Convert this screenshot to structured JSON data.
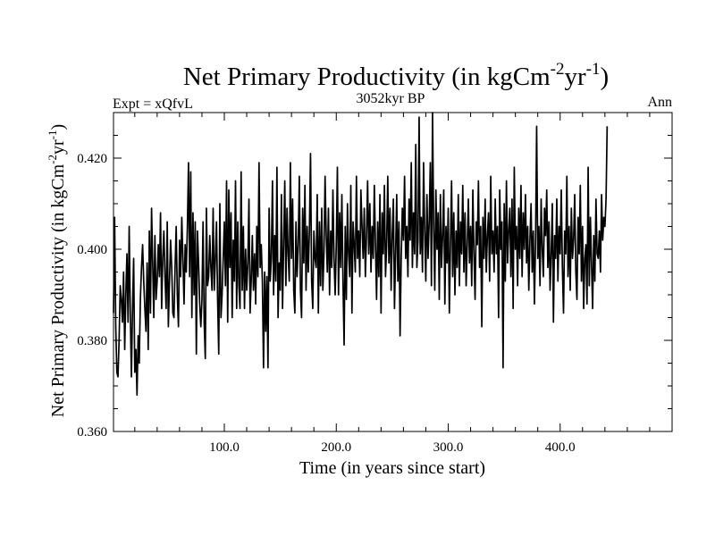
{
  "chart_data": {
    "type": "line",
    "title": "Net Primary Productivity (in kgCm",
    "title_sup1": "-2",
    "title_mid": "yr",
    "title_sup2": "-1",
    "title_end": ")",
    "subtitle_left": "Expt = xQfvL",
    "subtitle_center": "3052kyr BP",
    "subtitle_right": "Ann",
    "xlabel": "Time (in years since start)",
    "ylabel": "Net Primary Productivity (in kgCm",
    "ylabel_sup1": "-2",
    "ylabel_mid": "yr",
    "ylabel_sup2": "-1",
    "ylabel_end": ")",
    "xlim": [
      1,
      500
    ],
    "ylim": [
      0.36,
      0.43
    ],
    "x_ticks": [
      100,
      200,
      300,
      400
    ],
    "x_tick_labels": [
      "100.0",
      "200.0",
      "300.0",
      "400.0"
    ],
    "y_ticks": [
      0.36,
      0.38,
      0.4,
      0.42
    ],
    "y_tick_labels": [
      "0.360",
      "0.380",
      "0.400",
      "0.420"
    ],
    "grid": false,
    "series": [
      {
        "name": "Net Primary Productivity",
        "x_start": 1,
        "x_step": 1,
        "values": [
          0.386,
          0.407,
          0.383,
          0.373,
          0.372,
          0.38,
          0.392,
          0.389,
          0.384,
          0.395,
          0.378,
          0.39,
          0.399,
          0.384,
          0.405,
          0.386,
          0.372,
          0.387,
          0.398,
          0.373,
          0.378,
          0.368,
          0.381,
          0.375,
          0.389,
          0.396,
          0.401,
          0.393,
          0.387,
          0.382,
          0.397,
          0.378,
          0.404,
          0.386,
          0.409,
          0.397,
          0.385,
          0.403,
          0.389,
          0.393,
          0.401,
          0.394,
          0.408,
          0.387,
          0.398,
          0.404,
          0.394,
          0.387,
          0.406,
          0.383,
          0.393,
          0.402,
          0.396,
          0.386,
          0.385,
          0.396,
          0.405,
          0.39,
          0.383,
          0.402,
          0.394,
          0.407,
          0.398,
          0.388,
          0.401,
          0.395,
          0.405,
          0.419,
          0.394,
          0.417,
          0.385,
          0.408,
          0.39,
          0.406,
          0.377,
          0.404,
          0.397,
          0.388,
          0.383,
          0.389,
          0.406,
          0.384,
          0.376,
          0.409,
          0.392,
          0.394,
          0.403,
          0.396,
          0.391,
          0.409,
          0.391,
          0.398,
          0.406,
          0.389,
          0.377,
          0.41,
          0.385,
          0.39,
          0.398,
          0.406,
          0.392,
          0.415,
          0.384,
          0.413,
          0.396,
          0.408,
          0.385,
          0.402,
          0.393,
          0.415,
          0.387,
          0.406,
          0.392,
          0.387,
          0.417,
          0.391,
          0.405,
          0.387,
          0.4,
          0.391,
          0.397,
          0.411,
          0.386,
          0.393,
          0.403,
          0.391,
          0.399,
          0.388,
          0.405,
          0.394,
          0.419,
          0.396,
          0.401,
          0.393,
          0.374,
          0.395,
          0.382,
          0.394,
          0.374,
          0.409,
          0.393,
          0.398,
          0.415,
          0.39,
          0.403,
          0.393,
          0.418,
          0.385,
          0.397,
          0.391,
          0.412,
          0.387,
          0.401,
          0.415,
          0.392,
          0.409,
          0.399,
          0.393,
          0.419,
          0.398,
          0.411,
          0.391,
          0.386,
          0.406,
          0.394,
          0.401,
          0.416,
          0.391,
          0.385,
          0.409,
          0.397,
          0.414,
          0.391,
          0.405,
          0.395,
          0.404,
          0.421,
          0.393,
          0.387,
          0.404,
          0.398,
          0.396,
          0.412,
          0.386,
          0.406,
          0.392,
          0.409,
          0.391,
          0.399,
          0.416,
          0.403,
          0.395,
          0.409,
          0.39,
          0.404,
          0.396,
          0.413,
          0.398,
          0.39,
          0.401,
          0.418,
          0.39,
          0.408,
          0.396,
          0.412,
          0.393,
          0.379,
          0.405,
          0.389,
          0.41,
          0.399,
          0.394,
          0.414,
          0.386,
          0.406,
          0.401,
          0.395,
          0.416,
          0.398,
          0.404,
          0.394,
          0.413,
          0.405,
          0.398,
          0.409,
          0.394,
          0.403,
          0.415,
          0.399,
          0.41,
          0.395,
          0.405,
          0.398,
          0.414,
          0.401,
          0.389,
          0.406,
          0.394,
          0.412,
          0.386,
          0.408,
          0.399,
          0.414,
          0.394,
          0.401,
          0.416,
          0.397,
          0.409,
          0.391,
          0.403,
          0.411,
          0.387,
          0.399,
          0.412,
          0.393,
          0.406,
          0.381,
          0.398,
          0.409,
          0.402,
          0.416,
          0.398,
          0.405,
          0.394,
          0.411,
          0.402,
          0.419,
          0.396,
          0.408,
          0.399,
          0.423,
          0.396,
          0.402,
          0.429,
          0.399,
          0.407,
          0.395,
          0.419,
          0.404,
          0.393,
          0.412,
          0.398,
          0.406,
          0.419,
          0.392,
          0.43,
          0.405,
          0.391,
          0.413,
          0.4,
          0.408,
          0.389,
          0.412,
          0.396,
          0.403,
          0.413,
          0.388,
          0.405,
          0.397,
          0.409,
          0.386,
          0.401,
          0.415,
          0.394,
          0.408,
          0.39,
          0.404,
          0.396,
          0.412,
          0.392,
          0.406,
          0.399,
          0.414,
          0.395,
          0.408,
          0.392,
          0.401,
          0.411,
          0.397,
          0.405,
          0.392,
          0.413,
          0.399,
          0.389,
          0.406,
          0.401,
          0.415,
          0.396,
          0.405,
          0.383,
          0.407,
          0.398,
          0.411,
          0.395,
          0.403,
          0.408,
          0.393,
          0.416,
          0.399,
          0.404,
          0.395,
          0.411,
          0.399,
          0.405,
          0.385,
          0.413,
          0.4,
          0.406,
          0.374,
          0.41,
          0.393,
          0.415,
          0.397,
          0.404,
          0.409,
          0.394,
          0.411,
          0.387,
          0.418,
          0.4,
          0.405,
          0.392,
          0.409,
          0.398,
          0.414,
          0.394,
          0.408,
          0.4,
          0.412,
          0.397,
          0.405,
          0.391,
          0.402,
          0.41,
          0.395,
          0.404,
          0.388,
          0.401,
          0.427,
          0.398,
          0.405,
          0.392,
          0.411,
          0.4,
          0.394,
          0.409,
          0.403,
          0.413,
          0.396,
          0.406,
          0.391,
          0.399,
          0.41,
          0.384,
          0.403,
          0.398,
          0.411,
          0.393,
          0.405,
          0.399,
          0.413,
          0.396,
          0.386,
          0.404,
          0.399,
          0.416,
          0.394,
          0.405,
          0.391,
          0.409,
          0.398,
          0.402,
          0.412,
          0.395,
          0.389,
          0.407,
          0.399,
          0.414,
          0.393,
          0.405,
          0.387,
          0.398,
          0.401,
          0.388,
          0.418,
          0.392,
          0.407,
          0.397,
          0.387,
          0.403,
          0.393,
          0.411,
          0.399,
          0.398,
          0.404,
          0.395,
          0.412,
          0.402,
          0.407,
          0.405,
          0.411,
          0.427
        ]
      }
    ]
  }
}
